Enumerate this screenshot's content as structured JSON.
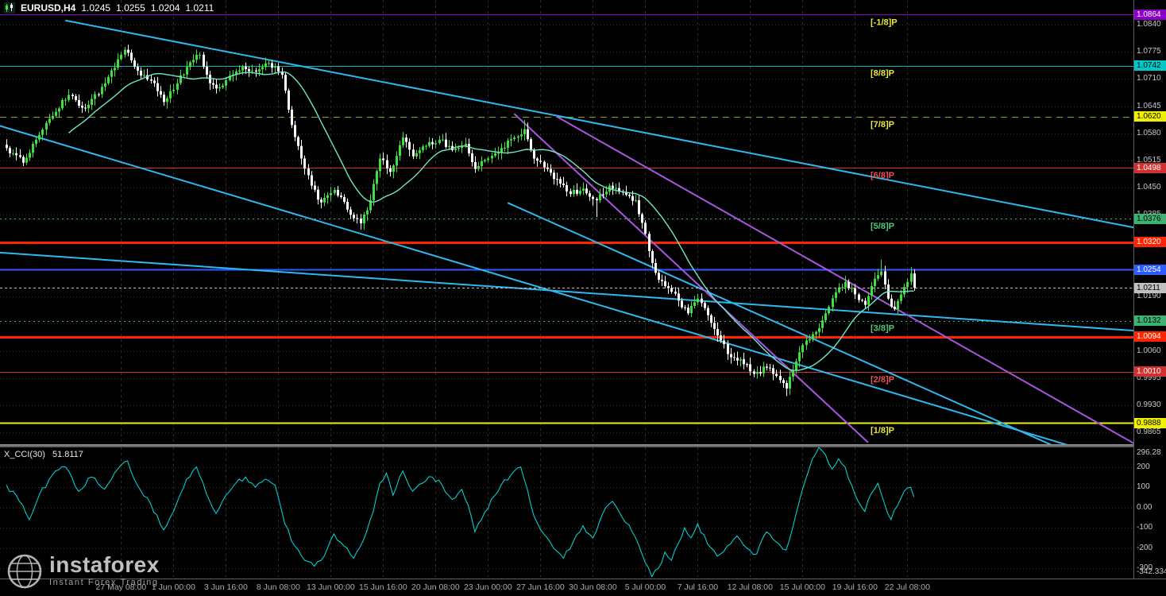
{
  "window": {
    "symbol": "EURUSD,H4",
    "open": "1.0245",
    "high": "1.0255",
    "low": "1.0204",
    "close": "1.0211"
  },
  "indicator": {
    "name": "X_CCI(30)",
    "value": "51.8117"
  },
  "watermark": {
    "brand": "instaforex",
    "tagline": "Instant Forex Trading"
  },
  "icons": {
    "header": "candlestick-chart-icon",
    "watermark": "globe-icon"
  },
  "colors": {
    "background": "#000000",
    "bull_candle": "#3FDF3F",
    "bear_candle": "#FFFFFF",
    "ma_line": "#6FE8C8",
    "cci_line": "#00E0E0",
    "channel_line": "#2FB8F0",
    "violet_line": "#AA55DD",
    "grid": "#2E2E2E",
    "axis_text": "#C8C8C8",
    "time_text": "#ABABAB",
    "current_price": "#C0C0C0",
    "sr_line": "#FF2400"
  },
  "price_axis": {
    "ticks": [
      "1.0840",
      "1.0775",
      "1.0710",
      "1.0645",
      "1.0580",
      "1.0515",
      "1.0450",
      "1.0385",
      "1.0320",
      "1.0255",
      "1.0190",
      "1.0125",
      "1.0060",
      "0.9995",
      "0.9930",
      "0.9865"
    ]
  },
  "time_axis": {
    "labels": [
      "27 May 08:00",
      "1 Jun 00:00",
      "3 Jun 16:00",
      "8 Jun 08:00",
      "13 Jun 00:00",
      "15 Jun 16:00",
      "20 Jun 08:00",
      "23 Jun 00:00",
      "27 Jun 16:00",
      "30 Jun 08:00",
      "5 Jul 00:00",
      "7 Jul 16:00",
      "12 Jul 08:00",
      "15 Jul 00:00",
      "19 Jul 16:00",
      "22 Jul 08:00"
    ]
  },
  "indicator_axis": {
    "max": "296.28",
    "min": "-342.334",
    "ticks": [
      {
        "value": 200,
        "label": "200"
      },
      {
        "value": 100,
        "label": "100"
      },
      {
        "value": 0,
        "label": "0.00"
      },
      {
        "value": -100,
        "label": "-100"
      },
      {
        "value": -200,
        "label": "-200"
      },
      {
        "value": -300,
        "label": "-300"
      }
    ]
  },
  "chart_data": {
    "type": "candlestick",
    "symbol": "EURUSD",
    "timeframe": "H4",
    "bars_total": 278,
    "first_grid_bar": 35,
    "grid_step_bars": 16,
    "price_range": [
      0.9837,
      1.0899
    ],
    "murrey_levels": [
      {
        "label": "[-1/8]P",
        "price": 1.0864,
        "tag": "1.0864",
        "line_color": "#8B00C8",
        "style": "solid",
        "width": 1,
        "label_color": "#E8E840",
        "tag_bg": "#8B00C8",
        "tag_fg": "#FFFFFF"
      },
      {
        "label": "[8/8]P",
        "price": 1.0742,
        "tag": "1.0742",
        "line_color": "#00B8B8",
        "style": "solid",
        "width": 1,
        "label_color": "#E8E840",
        "tag_bg": "#00C8C8",
        "tag_fg": "#000000"
      },
      {
        "label": "[7/8]P",
        "price": 1.062,
        "tag": "1.0620",
        "line_color": "#A0A000",
        "style": "dash",
        "width": 1,
        "label_color": "#E8E840",
        "tag_bg": "#F0F000",
        "tag_fg": "#000000"
      },
      {
        "label": "[6/8]P",
        "price": 1.0498,
        "tag": "1.0498",
        "line_color": "#D03030",
        "style": "solid",
        "width": 1,
        "label_color": "#F05050",
        "tag_bg": "#D03030",
        "tag_fg": "#FFFFFF"
      },
      {
        "label": "[5/8]P",
        "price": 1.0376,
        "tag": "1.0376",
        "line_color": "#3CB371",
        "style": "dot",
        "width": 1,
        "label_color": "#50C878",
        "tag_bg": "#3CB371",
        "tag_fg": "#000000"
      },
      {
        "label": "",
        "price": 1.0254,
        "tag": "1.0254",
        "line_color": "#2B5CFF",
        "style": "solid",
        "width": 2,
        "label_color": "#4080FF",
        "tag_bg": "#2B5CFF",
        "tag_fg": "#FFFFFF"
      },
      {
        "label": "[3/8]P",
        "price": 1.0132,
        "tag": "1.0132",
        "line_color": "#3CB371",
        "style": "dot",
        "width": 1,
        "label_color": "#50C878",
        "tag_bg": "#3CB371",
        "tag_fg": "#000000"
      },
      {
        "label": "[2/8]P",
        "price": 1.001,
        "tag": "1.0010",
        "line_color": "#D03030",
        "style": "solid",
        "width": 1,
        "label_color": "#F05050",
        "tag_bg": "#D03030",
        "tag_fg": "#FFFFFF"
      },
      {
        "label": "[1/8]P",
        "price": 0.9888,
        "tag": "0.9888",
        "line_color": "#F0F000",
        "style": "solid",
        "width": 2,
        "label_color": "#E8E840",
        "tag_bg": "#F0F000",
        "tag_fg": "#000000"
      }
    ],
    "support_resistance": [
      {
        "price": 1.032,
        "tag": "1.0320",
        "color": "#FF2400",
        "width": 3
      },
      {
        "price": 1.0094,
        "tag": "1.0094",
        "color": "#FF2400",
        "width": 3
      }
    ],
    "current_price": {
      "price": 1.0211,
      "tag": "1.0211",
      "color": "#C0C0C0"
    },
    "trendlines": [
      {
        "name": "descending-channel-upper",
        "color": "#2FB8F0",
        "width": 2,
        "points": [
          [
            18,
            1.085
          ],
          [
            354,
            1.034
          ]
        ]
      },
      {
        "name": "descending-channel-lower",
        "color": "#2FB8F0",
        "width": 2,
        "points": [
          [
            -2,
            1.0598
          ],
          [
            326,
            0.983
          ]
        ]
      },
      {
        "name": "shallow-descending-line",
        "color": "#2FB8F0",
        "width": 2,
        "points": [
          [
            -2,
            1.0295
          ],
          [
            354,
            1.0103
          ]
        ]
      },
      {
        "name": "short-descending-support",
        "color": "#2FB8F0",
        "width": 2,
        "points": [
          [
            153,
            1.0414
          ],
          [
            319,
            0.9835
          ]
        ]
      },
      {
        "name": "steep-violet-trendline-1",
        "color": "#AA55DD",
        "width": 2,
        "points": [
          [
            155,
            1.0627
          ],
          [
            263,
            0.9841
          ]
        ]
      },
      {
        "name": "steep-violet-trendline-2",
        "color": "#AA55DD",
        "width": 2,
        "points": [
          [
            168,
            1.062
          ],
          [
            345,
            0.9835
          ]
        ]
      }
    ],
    "last_candle": {
      "open": 1.0245,
      "high": 1.0255,
      "low": 1.0204,
      "close": 1.0211
    },
    "close_anchors": [
      [
        0,
        1.0545
      ],
      [
        5,
        1.051
      ],
      [
        9,
        1.0565
      ],
      [
        13,
        1.0615
      ],
      [
        19,
        1.0672
      ],
      [
        24,
        1.064
      ],
      [
        30,
        1.07
      ],
      [
        36,
        1.078
      ],
      [
        40,
        1.073
      ],
      [
        45,
        1.07
      ],
      [
        48,
        1.0655
      ],
      [
        52,
        1.07
      ],
      [
        56,
        1.075
      ],
      [
        59,
        1.0768
      ],
      [
        62,
        1.07
      ],
      [
        65,
        1.069
      ],
      [
        68,
        1.0718
      ],
      [
        72,
        1.074
      ],
      [
        76,
        1.0728
      ],
      [
        80,
        1.0748
      ],
      [
        84,
        1.072
      ],
      [
        87,
        1.06
      ],
      [
        90,
        1.052
      ],
      [
        93,
        1.0455
      ],
      [
        96,
        1.0415
      ],
      [
        100,
        1.0445
      ],
      [
        104,
        1.0398
      ],
      [
        108,
        1.0365
      ],
      [
        111,
        1.042
      ],
      [
        114,
        1.052
      ],
      [
        117,
        1.0488
      ],
      [
        121,
        1.057
      ],
      [
        124,
        1.0525
      ],
      [
        128,
        1.055
      ],
      [
        132,
        1.0565
      ],
      [
        136,
        1.054
      ],
      [
        140,
        1.0555
      ],
      [
        143,
        1.0495
      ],
      [
        147,
        1.052
      ],
      [
        151,
        1.0545
      ],
      [
        155,
        1.057
      ],
      [
        158,
        1.059
      ],
      [
        161,
        1.052
      ],
      [
        165,
        1.0495
      ],
      [
        169,
        1.046
      ],
      [
        172,
        1.0435
      ],
      [
        176,
        1.0448
      ],
      [
        180,
        1.042
      ],
      [
        184,
        1.0455
      ],
      [
        188,
        1.044
      ],
      [
        192,
        1.042
      ],
      [
        195,
        1.034
      ],
      [
        197,
        1.027
      ],
      [
        199,
        1.023
      ],
      [
        202,
        1.021
      ],
      [
        205,
        1.018
      ],
      [
        208,
        1.015
      ],
      [
        211,
        1.0185
      ],
      [
        214,
        1.0145
      ],
      [
        218,
        1.0085
      ],
      [
        221,
        1.0045
      ],
      [
        224,
        1.004
      ],
      [
        228,
        1.0005
      ],
      [
        232,
        1.002
      ],
      [
        236,
        0.999
      ],
      [
        238,
        0.997
      ],
      [
        241,
        1.0035
      ],
      [
        244,
        1.0085
      ],
      [
        247,
        1.0105
      ],
      [
        250,
        1.015
      ],
      [
        253,
        1.02
      ],
      [
        256,
        1.0225
      ],
      [
        259,
        1.0195
      ],
      [
        262,
        1.017
      ],
      [
        264,
        1.0215
      ],
      [
        267,
        1.025
      ],
      [
        269,
        1.0185
      ],
      [
        271,
        1.016
      ],
      [
        273,
        1.0195
      ],
      [
        275,
        1.0225
      ],
      [
        276,
        1.0245
      ],
      [
        277,
        1.0211
      ]
    ],
    "wick_extremes": [
      [
        36,
        "high",
        1.0787
      ],
      [
        59,
        "high",
        1.0774
      ],
      [
        108,
        "low",
        1.035
      ],
      [
        158,
        "high",
        1.0612
      ],
      [
        180,
        "low",
        1.038
      ],
      [
        238,
        "low",
        0.9952
      ],
      [
        267,
        "high",
        1.0278
      ]
    ],
    "ma_period": 20,
    "cci": {
      "period": 30,
      "anchors": [
        [
          0,
          110
        ],
        [
          4,
          30
        ],
        [
          7,
          -60
        ],
        [
          10,
          60
        ],
        [
          14,
          160
        ],
        [
          18,
          200
        ],
        [
          22,
          80
        ],
        [
          26,
          150
        ],
        [
          30,
          90
        ],
        [
          34,
          190
        ],
        [
          37,
          230
        ],
        [
          40,
          110
        ],
        [
          44,
          20
        ],
        [
          48,
          -110
        ],
        [
          51,
          -20
        ],
        [
          55,
          140
        ],
        [
          58,
          200
        ],
        [
          61,
          70
        ],
        [
          64,
          -30
        ],
        [
          67,
          60
        ],
        [
          70,
          120
        ],
        [
          73,
          150
        ],
        [
          76,
          100
        ],
        [
          79,
          140
        ],
        [
          82,
          110
        ],
        [
          85,
          -80
        ],
        [
          88,
          -190
        ],
        [
          91,
          -260
        ],
        [
          94,
          -290
        ],
        [
          97,
          -240
        ],
        [
          100,
          -130
        ],
        [
          103,
          -190
        ],
        [
          106,
          -250
        ],
        [
          109,
          -160
        ],
        [
          112,
          -20
        ],
        [
          114,
          120
        ],
        [
          116,
          170
        ],
        [
          118,
          60
        ],
        [
          121,
          180
        ],
        [
          124,
          80
        ],
        [
          127,
          120
        ],
        [
          130,
          150
        ],
        [
          133,
          110
        ],
        [
          136,
          40
        ],
        [
          139,
          90
        ],
        [
          141,
          10
        ],
        [
          143,
          -120
        ],
        [
          145,
          -60
        ],
        [
          148,
          40
        ],
        [
          151,
          110
        ],
        [
          154,
          160
        ],
        [
          157,
          200
        ],
        [
          159,
          90
        ],
        [
          161,
          -40
        ],
        [
          164,
          -130
        ],
        [
          167,
          -200
        ],
        [
          170,
          -250
        ],
        [
          173,
          -170
        ],
        [
          176,
          -90
        ],
        [
          179,
          -150
        ],
        [
          182,
          -30
        ],
        [
          185,
          30
        ],
        [
          188,
          -50
        ],
        [
          191,
          -120
        ],
        [
          194,
          -230
        ],
        [
          197,
          -342.33
        ],
        [
          199,
          -300
        ],
        [
          201,
          -220
        ],
        [
          203,
          -260
        ],
        [
          205,
          -180
        ],
        [
          207,
          -100
        ],
        [
          209,
          -150
        ],
        [
          211,
          -80
        ],
        [
          214,
          -180
        ],
        [
          217,
          -240
        ],
        [
          220,
          -190
        ],
        [
          223,
          -140
        ],
        [
          226,
          -200
        ],
        [
          229,
          -230
        ],
        [
          232,
          -120
        ],
        [
          235,
          -170
        ],
        [
          238,
          -210
        ],
        [
          240,
          -100
        ],
        [
          242,
          30
        ],
        [
          244,
          140
        ],
        [
          246,
          240
        ],
        [
          248,
          296.28
        ],
        [
          250,
          260
        ],
        [
          252,
          190
        ],
        [
          254,
          240
        ],
        [
          256,
          200
        ],
        [
          258,
          110
        ],
        [
          260,
          30
        ],
        [
          262,
          -20
        ],
        [
          264,
          70
        ],
        [
          266,
          120
        ],
        [
          268,
          20
        ],
        [
          270,
          -60
        ],
        [
          272,
          10
        ],
        [
          274,
          80
        ],
        [
          276,
          100
        ],
        [
          277,
          51.81
        ]
      ]
    }
  }
}
